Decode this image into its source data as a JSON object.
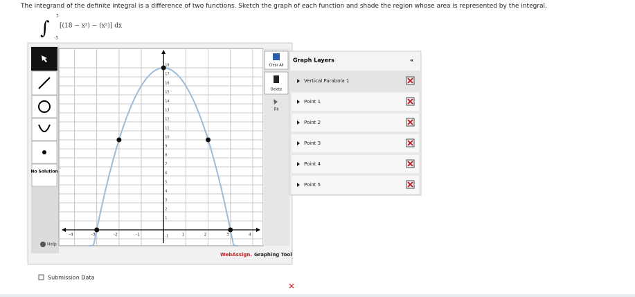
{
  "prompt": "The integrand of the definite integral is a difference of two functions. Sketch the graph of each function and shade the region whose area is represented by the integral.",
  "integral": {
    "lower": "-3",
    "upper": "3",
    "integrand": "[(18 − x²) − (x²)] dx"
  },
  "tools": {
    "no_solution": "No Solution",
    "help": "Help",
    "clear_all": "Clear All",
    "delete": "Delete",
    "fill": "Fill"
  },
  "graph": {
    "xlim": [
      -4.7,
      4.47
    ],
    "ylim": [
      -1.77,
      20.15
    ],
    "xticks": [
      -4,
      -3,
      -2,
      -1,
      1,
      2,
      3,
      4
    ],
    "yticks": [
      -1,
      1,
      2,
      3,
      4,
      5,
      6,
      7,
      8,
      9,
      10,
      11,
      12,
      13,
      14,
      15,
      16,
      17,
      18
    ],
    "points": [
      {
        "x": 0,
        "y": 18
      },
      {
        "x": -2,
        "y": 10
      },
      {
        "x": 2,
        "y": 10
      },
      {
        "x": -3,
        "y": 0
      },
      {
        "x": 3,
        "y": 0
      }
    ]
  },
  "branding": {
    "name": "WebAssign.",
    "suffix": "Graphing Tool"
  },
  "layers": {
    "title": "Graph Layers",
    "collapse": "«",
    "items": [
      "Vertical Parabola 1",
      "Point 1",
      "Point 2",
      "Point 3",
      "Point 4",
      "Point 5"
    ]
  },
  "submission": "Submission Data"
}
